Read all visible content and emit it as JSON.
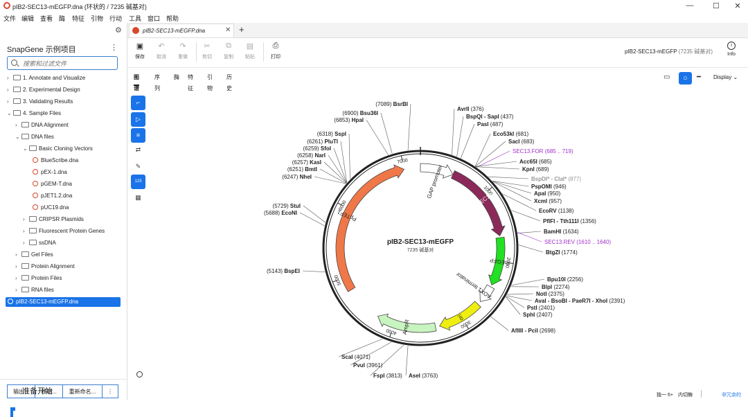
{
  "window": {
    "title": "pIB2-SEC13-mEGFP.dna  (环状的 / 7235 碱基对)",
    "controls": [
      "—",
      "☐",
      "✕"
    ]
  },
  "menu": [
    "文件",
    "编辑",
    "查看",
    "酶",
    "特征",
    "引物",
    "行动",
    "工具",
    "窗口",
    "帮助"
  ],
  "left_panel": {
    "title": "SnapGene 示例项目",
    "search_placeholder": "搜索和过滤文件",
    "tree": [
      {
        "label": "1. Annotate and Visualize",
        "level": 0,
        "type": "folder",
        "open": false
      },
      {
        "label": "2. Experimental Design",
        "level": 0,
        "type": "folder",
        "open": false
      },
      {
        "label": "3. Validating Results",
        "level": 0,
        "type": "folder",
        "open": false
      },
      {
        "label": "4. Sample Files",
        "level": 0,
        "type": "folder",
        "open": true
      },
      {
        "label": "DNA Alignment",
        "level": 1,
        "type": "folder",
        "open": false
      },
      {
        "label": "DNA files",
        "level": 1,
        "type": "folder",
        "open": true
      },
      {
        "label": "Basic Cloning Vectors",
        "level": 2,
        "type": "folder",
        "open": true
      },
      {
        "label": "BlueScribe.dna",
        "level": 3,
        "type": "dna"
      },
      {
        "label": "pEX-1.dna",
        "level": 3,
        "type": "dna"
      },
      {
        "label": "pGEM-T.dna",
        "level": 3,
        "type": "dna"
      },
      {
        "label": "pJET1.2.dna",
        "level": 3,
        "type": "dna"
      },
      {
        "label": "pUC19.dna",
        "level": 3,
        "type": "dna"
      },
      {
        "label": "CRIPSR Plasmids",
        "level": 2,
        "type": "folder",
        "open": false
      },
      {
        "label": "Fluorescent Protein Genes",
        "level": 2,
        "type": "folder",
        "open": false
      },
      {
        "label": "ssDNA",
        "level": 2,
        "type": "folder",
        "open": false
      },
      {
        "label": "Gel Files",
        "level": 1,
        "type": "folder",
        "open": false
      },
      {
        "label": "Protein Alignment",
        "level": 1,
        "type": "folder",
        "open": false
      },
      {
        "label": "Protein Files",
        "level": 1,
        "type": "folder",
        "open": false
      },
      {
        "label": "RNA files",
        "level": 1,
        "type": "folder",
        "open": false
      },
      {
        "label": "pIB2-SEC13-mEGFP.dna",
        "level": 0,
        "type": "dna",
        "selected": true
      }
    ],
    "buttons": [
      "输出...",
      "移动...",
      "重新命名...",
      "⋮"
    ],
    "ready": "准备开始"
  },
  "doc_tab": {
    "label": "pIB2-SEC13-mEGFP.dna",
    "add": "+"
  },
  "toolbar": {
    "buttons": [
      {
        "label": "保存",
        "icon": "save-icon",
        "enabled": true
      },
      {
        "label": "取消",
        "icon": "undo-icon",
        "enabled": false
      },
      {
        "label": "重做",
        "icon": "redo-icon",
        "enabled": false
      },
      {
        "label": "剪切",
        "icon": "cut-icon",
        "enabled": false
      },
      {
        "label": "复制",
        "icon": "copy-icon",
        "enabled": false
      },
      {
        "label": "粘贴",
        "icon": "paste-icon",
        "enabled": false
      },
      {
        "label": "打印",
        "icon": "print-icon",
        "enabled": true
      }
    ],
    "file_title": "pIB2-SEC13-mEGFP",
    "file_len": "(7235 碱基对)",
    "info": "Info"
  },
  "view_tabs": [
    {
      "label": "图谱",
      "active": true
    },
    {
      "label": "序列",
      "active": false
    },
    {
      "label": "酶",
      "active": false
    },
    {
      "label": "特征",
      "active": false
    },
    {
      "label": "引物",
      "active": false
    },
    {
      "label": "历史",
      "active": false
    }
  ],
  "side_tools": [
    "sel-icon",
    "feature-icon",
    "enzyme-icon",
    "swap-icon",
    "brush-icon",
    "numbers-icon",
    "table-icon"
  ],
  "display_label": "Display",
  "map": {
    "name": "pIB2-SEC13-mEGFP",
    "length_label": "7235 碱基对",
    "total": 7235,
    "ticks": [
      1000,
      2000,
      3000,
      4000,
      5000,
      6000,
      7000
    ],
    "features": [
      {
        "label": "GAP promoter",
        "start": 7235,
        "end": 480,
        "color": "#ffffff"
      },
      {
        "label": "SEC13",
        "start": 480,
        "end": 1634,
        "color": "#8b2a5a"
      },
      {
        "label": "mEGFP",
        "start": 1660,
        "end": 2360,
        "color": "#22e022"
      },
      {
        "label": "AOX1 terminator",
        "start": 2390,
        "end": 2650,
        "color": "#ffffff"
      },
      {
        "label": "ori",
        "start": 2700,
        "end": 3340,
        "color": "#eeee10"
      },
      {
        "label": "AmpR",
        "start": 3400,
        "end": 4260,
        "color": "#c8f4c0"
      },
      {
        "label": "PpTEF1",
        "start": 4800,
        "end": 7000,
        "color": "#f07848"
      }
    ],
    "enzymes": [
      {
        "name": "AvrII",
        "pos": "(376)"
      },
      {
        "name": "BspQI - SapI",
        "pos": "(437)"
      },
      {
        "name": "PasI",
        "pos": "(487)"
      },
      {
        "name": "Eco53kI",
        "pos": "(681)"
      },
      {
        "name": "SacI",
        "pos": "(683)"
      },
      {
        "name": "SEC13.FOR",
        "pos": "(685 .. 719)",
        "primer": true
      },
      {
        "name": "Acc65I",
        "pos": "(685)"
      },
      {
        "name": "KpnI",
        "pos": "(689)"
      },
      {
        "name": "BspDI* - ClaI*",
        "pos": "(877)",
        "faint": true
      },
      {
        "name": "PspOMI",
        "pos": "(946)"
      },
      {
        "name": "ApaI",
        "pos": "(950)"
      },
      {
        "name": "XcmI",
        "pos": "(957)"
      },
      {
        "name": "EcoRV",
        "pos": "(1138)"
      },
      {
        "name": "PflFI - Tth111I",
        "pos": "(1356)"
      },
      {
        "name": "BamHI",
        "pos": "(1634)"
      },
      {
        "name": "SEC13.REV",
        "pos": "(1610 .. 1640)",
        "primer": true
      },
      {
        "name": "BtgZI",
        "pos": "(1774)"
      },
      {
        "name": "Bpu10I",
        "pos": "(2256)"
      },
      {
        "name": "BlpI",
        "pos": "(2274)"
      },
      {
        "name": "NotI",
        "pos": "(2375)"
      },
      {
        "name": "AvaI - BsoBI - PaeR7I - XhoI",
        "pos": "(2391)"
      },
      {
        "name": "PstI",
        "pos": "(2401)"
      },
      {
        "name": "SphI",
        "pos": "(2407)"
      },
      {
        "name": "AflIII - PciI",
        "pos": "(2698)"
      },
      {
        "name": "AseI",
        "pos": "(3763)"
      },
      {
        "name": "FspI",
        "pos": "(3813)"
      },
      {
        "name": "PvuI",
        "pos": "(3961)"
      },
      {
        "name": "ScaI",
        "pos": "(4071)"
      },
      {
        "name": "BspEI",
        "pos": "(5143)"
      },
      {
        "name": "EcoNI",
        "pos": "(5688)"
      },
      {
        "name": "StuI",
        "pos": "(5729)"
      },
      {
        "name": "NheI",
        "pos": "(6247)"
      },
      {
        "name": "BmtI",
        "pos": "(6251)"
      },
      {
        "name": "KasI",
        "pos": "(6257)"
      },
      {
        "name": "NarI",
        "pos": "(6258)"
      },
      {
        "name": "SfoI",
        "pos": "(6259)"
      },
      {
        "name": "PluTI",
        "pos": "(6261)"
      },
      {
        "name": "SspI",
        "pos": "(6318)"
      },
      {
        "name": "HpaI",
        "pos": "(6853)"
      },
      {
        "name": "Bsu36I",
        "pos": "(6900)"
      },
      {
        "name": "BsrBI",
        "pos": "(7089)"
      }
    ]
  },
  "status": {
    "left": "独一 6+",
    "mid": "内切酶",
    "right": "非冗余的"
  },
  "colors": {
    "accent": "#1a73e8",
    "primer": "#a030c8"
  }
}
